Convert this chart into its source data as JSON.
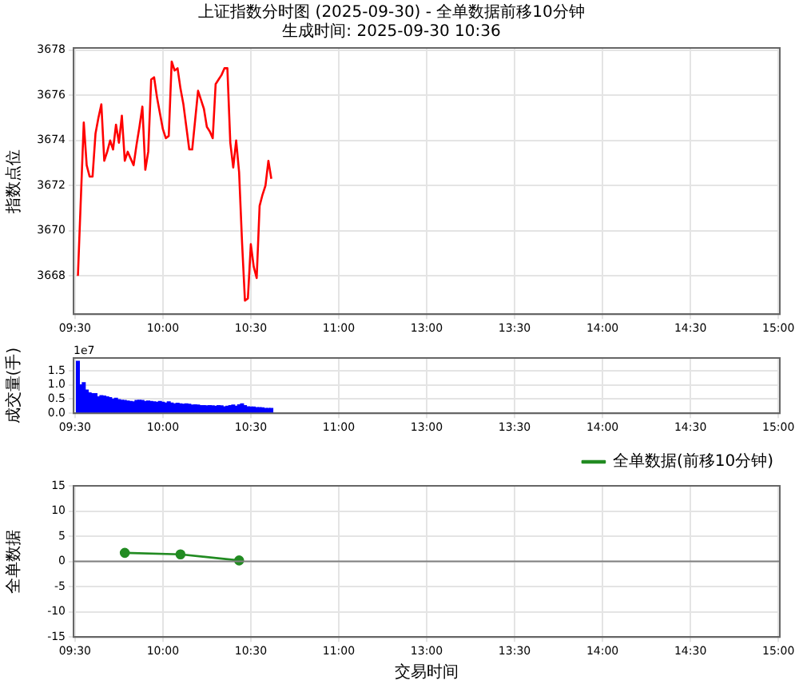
{
  "chart_data": [
    {
      "type": "line",
      "title": "上证指数分时图 (2025-09-30) - 全单数据前移10分钟",
      "subtitle": "生成时间: 2025-09-30 10:36",
      "ylabel": "指数点位",
      "categories": [
        "09:30",
        null,
        null,
        null,
        null,
        null,
        null,
        null,
        null,
        null,
        null,
        null,
        null,
        null,
        null,
        null,
        null,
        null,
        null,
        null,
        null,
        null,
        null,
        null,
        null,
        null,
        null,
        null,
        null,
        null,
        "10:00",
        null,
        null,
        null,
        null,
        null,
        null,
        null,
        null,
        null,
        null,
        null,
        null,
        null,
        null,
        null,
        null,
        null,
        null,
        null,
        null,
        null,
        null,
        null,
        null,
        null,
        null,
        null,
        null,
        null,
        "10:30",
        null,
        null,
        null,
        null,
        null,
        null,
        null,
        null,
        null,
        null,
        null,
        null,
        null,
        null,
        null,
        null,
        null,
        null,
        null,
        null,
        null,
        null,
        null,
        null,
        null,
        null,
        null,
        null,
        null,
        "11:00",
        null,
        null,
        null,
        null,
        null,
        null,
        null,
        null,
        null,
        null,
        null,
        null,
        null,
        null,
        null,
        null,
        null,
        null,
        null,
        null,
        null,
        null,
        null,
        null,
        null,
        null,
        null,
        null,
        null,
        "13:00",
        null,
        null,
        null,
        null,
        null,
        null,
        null,
        null,
        null,
        null,
        null,
        null,
        null,
        null,
        null,
        null,
        null,
        null,
        null,
        null,
        null,
        null,
        null,
        null,
        null,
        null,
        null,
        null,
        null,
        "13:30",
        null,
        null,
        null,
        null,
        null,
        null,
        null,
        null,
        null,
        null,
        null,
        null,
        null,
        null,
        null,
        null,
        null,
        null,
        null,
        null,
        null,
        null,
        null,
        null,
        null,
        null,
        null,
        null,
        null,
        "14:00",
        null,
        null,
        null,
        null,
        null,
        null,
        null,
        null,
        null,
        null,
        null,
        null,
        null,
        null,
        null,
        null,
        null,
        null,
        null,
        null,
        null,
        null,
        null,
        null,
        null,
        null,
        null,
        null,
        null,
        "14:30",
        null,
        null,
        null,
        null,
        null,
        null,
        null,
        null,
        null,
        null,
        null,
        null,
        null,
        null,
        null,
        null,
        null,
        null,
        null,
        null,
        null,
        null,
        null,
        null,
        null,
        null,
        null,
        null,
        null,
        "15:00"
      ],
      "series": [
        {
          "color": "#ff0000",
          "values": [
            null,
            3668.0,
            3671.4,
            3674.8,
            3672.9,
            3672.4,
            3672.4,
            3674.3,
            3675.0,
            3675.6,
            3673.1,
            3673.5,
            3674.0,
            3673.6,
            3674.7,
            3673.9,
            3675.1,
            3673.1,
            3673.5,
            3673.2,
            3672.9,
            3673.8,
            3674.6,
            3675.5,
            3672.7,
            3673.5,
            3676.7,
            3676.8,
            3675.9,
            3675.2,
            3674.5,
            3674.1,
            3674.2,
            3677.5,
            3677.1,
            3677.2,
            3676.3,
            3675.6,
            3674.6,
            3673.6,
            3673.6,
            3674.9,
            3676.2,
            3675.8,
            3675.4,
            3674.6,
            3674.4,
            3674.1,
            3676.5,
            3676.7,
            3676.9,
            3677.2,
            3677.2,
            3673.9,
            3672.8,
            3674.0,
            3672.6,
            3669.5,
            3666.9,
            3667.0,
            3669.4,
            3668.4,
            3667.9,
            3671.1,
            3671.6,
            3672.0,
            3673.1,
            3672.3,
            null,
            null,
            null,
            null,
            null,
            null,
            null,
            null,
            null,
            null,
            null,
            null,
            null,
            null,
            null,
            null,
            null,
            null,
            null,
            null,
            null,
            null,
            null,
            null,
            null,
            null,
            null,
            null,
            null,
            null,
            null,
            null,
            null,
            null,
            null,
            null,
            null,
            null,
            null,
            null,
            null,
            null,
            null,
            null,
            null,
            null,
            null,
            null,
            null,
            null,
            null,
            null,
            null,
            null,
            null,
            null,
            null,
            null,
            null,
            null,
            null,
            null,
            null,
            null,
            null,
            null,
            null,
            null,
            null,
            null,
            null,
            null,
            null,
            null,
            null,
            null,
            null,
            null,
            null,
            null,
            null,
            null,
            null,
            null,
            null,
            null,
            null,
            null,
            null,
            null,
            null,
            null,
            null,
            null,
            null,
            null,
            null,
            null,
            null,
            null,
            null,
            null,
            null,
            null,
            null,
            null,
            null,
            null,
            null,
            null,
            null,
            null,
            null,
            null,
            null,
            null,
            null,
            null,
            null,
            null,
            null,
            null,
            null,
            null,
            null,
            null,
            null,
            null,
            null,
            null,
            null,
            null,
            null,
            null,
            null,
            null,
            null,
            null,
            null,
            null,
            null,
            null,
            null,
            null,
            null,
            null,
            null,
            null,
            null,
            null,
            null,
            null,
            null,
            null,
            null,
            null,
            null,
            null,
            null,
            null,
            null,
            null,
            null,
            null,
            null,
            null,
            null,
            null,
            null,
            null,
            null,
            null,
            null
          ]
        }
      ],
      "ylim": [
        3666.3,
        3678.1
      ],
      "yticks": [
        3668,
        3670,
        3672,
        3674,
        3676,
        3678
      ],
      "grid": true,
      "marker": "none",
      "line_style": "solid"
    },
    {
      "type": "bar",
      "ylabel": "成交量(手)",
      "annotations": [
        "1e7"
      ],
      "categories": [
        "09:30",
        null,
        null,
        null,
        null,
        null,
        null,
        null,
        null,
        null,
        null,
        null,
        null,
        null,
        null,
        null,
        null,
        null,
        null,
        null,
        null,
        null,
        null,
        null,
        null,
        null,
        null,
        null,
        null,
        null,
        "10:00",
        null,
        null,
        null,
        null,
        null,
        null,
        null,
        null,
        null,
        null,
        null,
        null,
        null,
        null,
        null,
        null,
        null,
        null,
        null,
        null,
        null,
        null,
        null,
        null,
        null,
        null,
        null,
        null,
        null,
        "10:30",
        null,
        null,
        null,
        null,
        null,
        null,
        null,
        null,
        null,
        null,
        null,
        null,
        null,
        null,
        null,
        null,
        null,
        null,
        null,
        null,
        null,
        null,
        null,
        null,
        null,
        null,
        null,
        null,
        null,
        "11:00",
        null,
        null,
        null,
        null,
        null,
        null,
        null,
        null,
        null,
        null,
        null,
        null,
        null,
        null,
        null,
        null,
        null,
        null,
        null,
        null,
        null,
        null,
        null,
        null,
        null,
        null,
        null,
        null,
        null,
        "13:00",
        null,
        null,
        null,
        null,
        null,
        null,
        null,
        null,
        null,
        null,
        null,
        null,
        null,
        null,
        null,
        null,
        null,
        null,
        null,
        null,
        null,
        null,
        null,
        null,
        null,
        null,
        null,
        null,
        null,
        "13:30",
        null,
        null,
        null,
        null,
        null,
        null,
        null,
        null,
        null,
        null,
        null,
        null,
        null,
        null,
        null,
        null,
        null,
        null,
        null,
        null,
        null,
        null,
        null,
        null,
        null,
        null,
        null,
        null,
        null,
        "14:00",
        null,
        null,
        null,
        null,
        null,
        null,
        null,
        null,
        null,
        null,
        null,
        null,
        null,
        null,
        null,
        null,
        null,
        null,
        null,
        null,
        null,
        null,
        null,
        null,
        null,
        null,
        null,
        null,
        null,
        "14:30",
        null,
        null,
        null,
        null,
        null,
        null,
        null,
        null,
        null,
        null,
        null,
        null,
        null,
        null,
        null,
        null,
        null,
        null,
        null,
        null,
        null,
        null,
        null,
        null,
        null,
        null,
        null,
        null,
        null,
        "15:00"
      ],
      "series": [
        {
          "color": "#0000ff",
          "values": [
            null,
            1.83,
            1.0,
            1.08,
            0.82,
            0.72,
            0.69,
            0.69,
            0.58,
            0.62,
            0.61,
            0.58,
            0.55,
            0.5,
            0.53,
            0.48,
            0.46,
            0.45,
            0.43,
            0.42,
            0.4,
            0.45,
            0.46,
            0.45,
            0.42,
            0.43,
            0.42,
            0.4,
            0.39,
            0.42,
            0.39,
            0.36,
            0.4,
            0.36,
            0.33,
            0.35,
            0.33,
            0.32,
            0.33,
            0.32,
            0.29,
            0.3,
            0.29,
            0.27,
            0.27,
            0.26,
            0.27,
            0.26,
            0.25,
            0.27,
            0.26,
            0.23,
            0.25,
            0.27,
            0.29,
            0.25,
            0.3,
            0.33,
            0.27,
            0.23,
            0.22,
            0.22,
            0.2,
            0.2,
            0.19,
            0.17,
            0.17,
            0.17,
            null,
            null,
            null,
            null,
            null,
            null,
            null,
            null,
            null,
            null,
            null,
            null,
            null,
            null,
            null,
            null,
            null,
            null,
            null,
            null,
            null,
            null,
            null,
            null,
            null,
            null,
            null,
            null,
            null,
            null,
            null,
            null,
            null,
            null,
            null,
            null,
            null,
            null,
            null,
            null,
            null,
            null,
            null,
            null,
            null,
            null,
            null,
            null,
            null,
            null,
            null,
            null,
            null,
            null,
            null,
            null,
            null,
            null,
            null,
            null,
            null,
            null,
            null,
            null,
            null,
            null,
            null,
            null,
            null,
            null,
            null,
            null,
            null,
            null,
            null,
            null,
            null,
            null,
            null,
            null,
            null,
            null,
            null,
            null,
            null,
            null,
            null,
            null,
            null,
            null,
            null,
            null,
            null,
            null,
            null,
            null,
            null,
            null,
            null,
            null,
            null,
            null,
            null,
            null,
            null,
            null,
            null,
            null,
            null,
            null,
            null,
            null,
            null,
            null,
            null,
            null,
            null,
            null,
            null,
            null,
            null,
            null,
            null,
            null,
            null,
            null,
            null,
            null,
            null,
            null,
            null,
            null,
            null,
            null,
            null,
            null,
            null,
            null,
            null,
            null,
            null,
            null,
            null,
            null,
            null,
            null,
            null,
            null,
            null,
            null,
            null,
            null,
            null,
            null,
            null,
            null,
            null,
            null,
            null,
            null,
            null,
            null,
            null,
            null,
            null,
            null,
            null,
            null,
            null,
            null,
            null,
            null,
            null
          ]
        }
      ],
      "ylim": [
        0,
        1.95
      ],
      "yticks": [
        {
          "value": 0,
          "label": "0.0"
        },
        0.5,
        {
          "value": 1,
          "label": "1.0"
        },
        1.5
      ],
      "grid": true
    },
    {
      "type": "line",
      "xlabel": "交易时间",
      "ylabel": "全单数据",
      "legend": "top right",
      "marker": "circle",
      "line_style": "solid",
      "categories": [
        "09:30",
        null,
        null,
        null,
        null,
        null,
        null,
        null,
        null,
        null,
        null,
        null,
        null,
        null,
        null,
        null,
        null,
        null,
        null,
        null,
        null,
        null,
        null,
        null,
        null,
        null,
        null,
        null,
        null,
        null,
        "10:00",
        null,
        null,
        null,
        null,
        null,
        null,
        null,
        null,
        null,
        null,
        null,
        null,
        null,
        null,
        null,
        null,
        null,
        null,
        null,
        null,
        null,
        null,
        null,
        null,
        null,
        null,
        null,
        null,
        null,
        "10:30",
        null,
        null,
        null,
        null,
        null,
        null,
        null,
        null,
        null,
        null,
        null,
        null,
        null,
        null,
        null,
        null,
        null,
        null,
        null,
        null,
        null,
        null,
        null,
        null,
        null,
        null,
        null,
        null,
        null,
        "11:00",
        null,
        null,
        null,
        null,
        null,
        null,
        null,
        null,
        null,
        null,
        null,
        null,
        null,
        null,
        null,
        null,
        null,
        null,
        null,
        null,
        null,
        null,
        null,
        null,
        null,
        null,
        null,
        null,
        null,
        "13:00",
        null,
        null,
        null,
        null,
        null,
        null,
        null,
        null,
        null,
        null,
        null,
        null,
        null,
        null,
        null,
        null,
        null,
        null,
        null,
        null,
        null,
        null,
        null,
        null,
        null,
        null,
        null,
        null,
        null,
        "13:30",
        null,
        null,
        null,
        null,
        null,
        null,
        null,
        null,
        null,
        null,
        null,
        null,
        null,
        null,
        null,
        null,
        null,
        null,
        null,
        null,
        null,
        null,
        null,
        null,
        null,
        null,
        null,
        null,
        null,
        "14:00",
        null,
        null,
        null,
        null,
        null,
        null,
        null,
        null,
        null,
        null,
        null,
        null,
        null,
        null,
        null,
        null,
        null,
        null,
        null,
        null,
        null,
        null,
        null,
        null,
        null,
        null,
        null,
        null,
        null,
        "14:30",
        null,
        null,
        null,
        null,
        null,
        null,
        null,
        null,
        null,
        null,
        null,
        null,
        null,
        null,
        null,
        null,
        null,
        null,
        null,
        null,
        null,
        null,
        null,
        null,
        null,
        null,
        null,
        null,
        null,
        "15:00"
      ],
      "series": [
        {
          "name": "全单数据(前移10分钟)",
          "color": "#228b22",
          "values": [
            null,
            null,
            null,
            null,
            null,
            null,
            null,
            null,
            null,
            null,
            null,
            null,
            null,
            null,
            null,
            null,
            null,
            1.7,
            null,
            null,
            null,
            null,
            null,
            null,
            null,
            null,
            null,
            null,
            null,
            null,
            null,
            null,
            null,
            null,
            null,
            null,
            1.4,
            null,
            null,
            null,
            null,
            null,
            null,
            null,
            null,
            null,
            null,
            null,
            null,
            null,
            null,
            null,
            null,
            null,
            null,
            null,
            0.2,
            null,
            null,
            null,
            null,
            null,
            null,
            null,
            null,
            null,
            null,
            null,
            null,
            null,
            null,
            null,
            null,
            null,
            null,
            null,
            null,
            null,
            null,
            null,
            null,
            null,
            null,
            null,
            null,
            null,
            null,
            null,
            null,
            null,
            null,
            null,
            null,
            null,
            null,
            null,
            null,
            null,
            null,
            null,
            null,
            null,
            null,
            null,
            null,
            null,
            null,
            null,
            null,
            null,
            null,
            null,
            null,
            null,
            null,
            null,
            null,
            null,
            null,
            null,
            null,
            null,
            null,
            null,
            null,
            null,
            null,
            null,
            null,
            null,
            null,
            null,
            null,
            null,
            null,
            null,
            null,
            null,
            null,
            null,
            null,
            null,
            null,
            null,
            null,
            null,
            null,
            null,
            null,
            null,
            null,
            null,
            null,
            null,
            null,
            null,
            null,
            null,
            null,
            null,
            null,
            null,
            null,
            null,
            null,
            null,
            null,
            null,
            null,
            null,
            null,
            null,
            null,
            null,
            null,
            null,
            null,
            null,
            null,
            null,
            null,
            null,
            null,
            null,
            null,
            null,
            null,
            null,
            null,
            null,
            null,
            null,
            null,
            null,
            null,
            null,
            null,
            null,
            null,
            null,
            null,
            null,
            null,
            null,
            null,
            null,
            null,
            null,
            null,
            null,
            null,
            null,
            null,
            null,
            null,
            null,
            null,
            null,
            null,
            null,
            null,
            null,
            null,
            null,
            null,
            null,
            null,
            null,
            null,
            null,
            null,
            null,
            null,
            null,
            null,
            null,
            null,
            null,
            null,
            null,
            null
          ]
        }
      ],
      "ylim": [
        -15,
        15
      ],
      "yticks": [
        -15,
        -10,
        -5,
        0,
        5,
        10,
        15
      ],
      "grid": true,
      "ref_lines": [
        {
          "axis": "y",
          "value": 0,
          "color": "#808080"
        }
      ]
    }
  ]
}
